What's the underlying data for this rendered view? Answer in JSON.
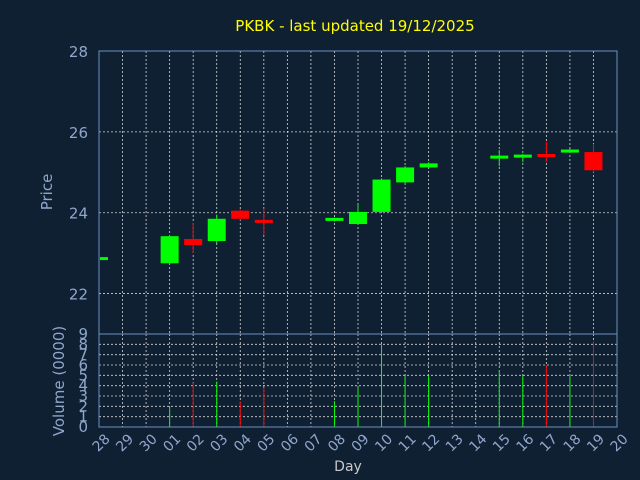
{
  "title": "PKBK - last updated 19/12/2025",
  "chart_data": [
    {
      "type": "candlestick",
      "ylabel": "Price",
      "ylim": [
        21,
        28
      ],
      "yticks": [
        "22",
        "24",
        "26",
        "28"
      ],
      "colors": {
        "up": "#00ff00",
        "down": "#ff0000"
      },
      "candles": [
        {
          "day": "28",
          "open": 22.85,
          "high": 22.9,
          "low": 22.82,
          "close": 22.88
        },
        {
          "day": "01",
          "open": 22.75,
          "high": 23.45,
          "low": 22.72,
          "close": 23.42
        },
        {
          "day": "02",
          "open": 23.35,
          "high": 23.75,
          "low": 23.0,
          "close": 23.2
        },
        {
          "day": "03",
          "open": 23.3,
          "high": 23.95,
          "low": 23.25,
          "close": 23.85
        },
        {
          "day": "04",
          "open": 24.05,
          "high": 24.08,
          "low": 23.82,
          "close": 23.85
        },
        {
          "day": "05",
          "open": 23.82,
          "high": 24.1,
          "low": 23.45,
          "close": 23.75
        },
        {
          "day": "08",
          "open": 23.82,
          "high": 23.88,
          "low": 23.78,
          "close": 23.85
        },
        {
          "day": "09",
          "open": 23.72,
          "high": 24.2,
          "low": 23.7,
          "close": 24.02
        },
        {
          "day": "10",
          "open": 24.02,
          "high": 24.85,
          "low": 24.0,
          "close": 24.82
        },
        {
          "day": "11",
          "open": 24.75,
          "high": 25.15,
          "low": 24.72,
          "close": 25.12
        },
        {
          "day": "12",
          "open": 25.12,
          "high": 25.25,
          "low": 25.1,
          "close": 25.22
        },
        {
          "day": "15",
          "open": 25.35,
          "high": 25.55,
          "low": 25.15,
          "close": 25.4
        },
        {
          "day": "16",
          "open": 25.38,
          "high": 25.45,
          "low": 25.25,
          "close": 25.42
        },
        {
          "day": "17",
          "open": 25.45,
          "high": 25.75,
          "low": 25.25,
          "close": 25.38
        },
        {
          "day": "18",
          "open": 25.5,
          "high": 25.58,
          "low": 25.48,
          "close": 25.55
        },
        {
          "day": "19",
          "open": 25.5,
          "high": 25.7,
          "low": 25.0,
          "close": 25.05
        }
      ]
    },
    {
      "type": "bar",
      "ylabel": "Volume (0000)",
      "ylim": [
        0,
        9
      ],
      "yticks": [
        "0",
        "1",
        "2",
        "3",
        "4",
        "5",
        "6",
        "7",
        "8",
        "9"
      ],
      "xlabel": "Day",
      "categories": [
        "28",
        "29",
        "30",
        "01",
        "02",
        "03",
        "04",
        "05",
        "06",
        "07",
        "08",
        "09",
        "10",
        "11",
        "12",
        "13",
        "14",
        "15",
        "16",
        "17",
        "18",
        "19",
        "20"
      ],
      "volumes": [
        {
          "day": "28",
          "value": 0.1,
          "direction": "up"
        },
        {
          "day": "01",
          "value": 1.9,
          "direction": "up"
        },
        {
          "day": "02",
          "value": 4.3,
          "direction": "down"
        },
        {
          "day": "03",
          "value": 4.4,
          "direction": "up"
        },
        {
          "day": "04",
          "value": 2.5,
          "direction": "down"
        },
        {
          "day": "05",
          "value": 3.8,
          "direction": "down"
        },
        {
          "day": "08",
          "value": 2.5,
          "direction": "up"
        },
        {
          "day": "09",
          "value": 3.8,
          "direction": "up"
        },
        {
          "day": "10",
          "value": 8.0,
          "direction": "up"
        },
        {
          "day": "11",
          "value": 5.0,
          "direction": "up"
        },
        {
          "day": "12",
          "value": 5.0,
          "direction": "up"
        },
        {
          "day": "15",
          "value": 5.5,
          "direction": "up"
        },
        {
          "day": "16",
          "value": 5.0,
          "direction": "up"
        },
        {
          "day": "17",
          "value": 6.0,
          "direction": "down"
        },
        {
          "day": "18",
          "value": 5.0,
          "direction": "up"
        },
        {
          "day": "19",
          "value": 8.3,
          "direction": "down"
        }
      ]
    }
  ]
}
